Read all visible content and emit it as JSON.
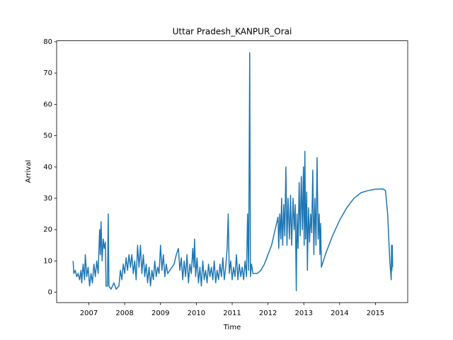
{
  "chart_data": {
    "type": "line",
    "title": "Uttar Pradesh_KANPUR_Orai",
    "x_label": "Time",
    "y_label": "Arrival",
    "color": "#1f77b4",
    "xlim": [
      2006.1,
      2015.9
    ],
    "xticks": [
      2007,
      2008,
      2009,
      2010,
      2011,
      2012,
      2013,
      2014,
      2015
    ],
    "ylim": [
      -3.3,
      80.3
    ],
    "yticks": [
      0,
      10,
      20,
      30,
      40,
      50,
      60,
      70,
      80
    ],
    "grid": false,
    "x": [
      2006.56,
      2006.58,
      2006.62,
      2006.66,
      2006.7,
      2006.74,
      2006.78,
      2006.8,
      2006.84,
      2006.88,
      2006.9,
      2006.94,
      2006.98,
      2007.02,
      2007.06,
      2007.1,
      2007.14,
      2007.18,
      2007.22,
      2007.26,
      2007.3,
      2007.32,
      2007.34,
      2007.37,
      2007.4,
      2007.43,
      2007.46,
      2007.48,
      2007.52,
      2007.54,
      2007.56,
      2007.62,
      2007.7,
      2007.76,
      2007.84,
      2007.88,
      2007.92,
      2007.96,
      2008.0,
      2008.04,
      2008.08,
      2008.12,
      2008.16,
      2008.2,
      2008.24,
      2008.28,
      2008.32,
      2008.36,
      2008.4,
      2008.44,
      2008.48,
      2008.52,
      2008.56,
      2008.6,
      2008.64,
      2008.68,
      2008.72,
      2008.76,
      2008.8,
      2008.84,
      2008.88,
      2008.92,
      2008.96,
      2009.0,
      2009.04,
      2009.08,
      2009.12,
      2009.16,
      2009.2,
      2009.26,
      2009.32,
      2009.38,
      2009.44,
      2009.5,
      2009.54,
      2009.58,
      2009.62,
      2009.66,
      2009.7,
      2009.74,
      2009.78,
      2009.82,
      2009.86,
      2009.9,
      2009.93,
      2009.95,
      2009.98,
      2010.02,
      2010.06,
      2010.1,
      2010.14,
      2010.18,
      2010.22,
      2010.26,
      2010.3,
      2010.34,
      2010.38,
      2010.42,
      2010.46,
      2010.5,
      2010.54,
      2010.58,
      2010.62,
      2010.66,
      2010.7,
      2010.74,
      2010.78,
      2010.82,
      2010.86,
      2010.89,
      2010.92,
      2010.96,
      2011.0,
      2011.04,
      2011.08,
      2011.12,
      2011.16,
      2011.2,
      2011.24,
      2011.28,
      2011.32,
      2011.36,
      2011.4,
      2011.43,
      2011.46,
      2011.49,
      2011.51,
      2011.54,
      2011.58,
      2011.7,
      2011.8,
      2011.9,
      2012.0,
      2012.1,
      2012.2,
      2012.28,
      2012.3,
      2012.33,
      2012.36,
      2012.38,
      2012.41,
      2012.44,
      2012.47,
      2012.5,
      2012.53,
      2012.56,
      2012.6,
      2012.63,
      2012.66,
      2012.7,
      2012.73,
      2012.76,
      2012.79,
      2012.81,
      2012.84,
      2012.87,
      2012.9,
      2012.93,
      2012.96,
      2012.99,
      2013.01,
      2013.03,
      2013.05,
      2013.08,
      2013.1,
      2013.13,
      2013.16,
      2013.19,
      2013.22,
      2013.25,
      2013.28,
      2013.31,
      2013.34,
      2013.37,
      2013.4,
      2013.43,
      2013.45,
      2013.47,
      2013.49,
      2013.6,
      2013.8,
      2014.0,
      2014.2,
      2014.4,
      2014.6,
      2014.8,
      2015.0,
      2015.2,
      2015.28,
      2015.34,
      2015.4,
      2015.44,
      2015.45,
      2015.46,
      2015.47,
      2015.48
    ],
    "values": [
      10,
      6,
      7,
      5,
      6,
      4,
      7,
      3,
      9,
      4,
      12,
      5,
      8,
      2,
      6,
      3,
      9,
      5,
      10,
      6,
      20,
      12,
      22.5,
      10,
      17,
      14,
      16,
      2,
      2,
      25,
      2,
      1,
      3,
      1,
      2,
      7,
      4,
      9,
      6,
      11,
      7,
      12,
      8,
      12,
      6,
      10,
      4,
      15,
      8,
      15,
      6,
      12,
      5,
      9,
      3,
      8,
      2,
      7,
      4,
      10,
      5,
      8,
      6,
      15,
      7,
      12,
      5,
      9,
      6,
      7,
      8,
      9,
      12,
      14,
      7,
      11,
      4,
      10,
      5,
      12,
      3,
      9,
      6,
      14,
      8,
      17,
      5,
      11,
      3,
      8,
      2,
      10,
      4,
      7,
      3,
      9,
      5,
      8,
      4,
      10,
      3,
      7,
      4,
      9,
      5,
      11,
      4,
      8,
      14,
      25,
      6,
      10,
      4,
      8,
      5,
      12,
      4,
      9,
      5,
      8,
      4,
      10,
      5,
      25,
      7,
      76.5,
      5,
      9,
      6,
      6,
      7,
      9,
      12,
      15,
      20,
      24,
      14,
      25,
      17,
      30,
      15,
      28,
      18,
      40,
      15,
      30,
      17,
      31,
      15,
      30,
      20,
      28,
      0.5,
      25,
      14,
      35,
      18,
      37,
      20,
      40,
      15,
      45,
      17,
      32,
      7,
      27,
      16,
      25,
      19,
      39,
      12,
      30,
      15,
      43,
      17,
      25,
      12,
      22,
      8,
      12,
      18,
      23,
      27,
      30,
      31.8,
      32.5,
      32.9,
      33,
      32.5,
      25,
      10,
      4,
      15,
      7,
      15,
      8
    ]
  }
}
